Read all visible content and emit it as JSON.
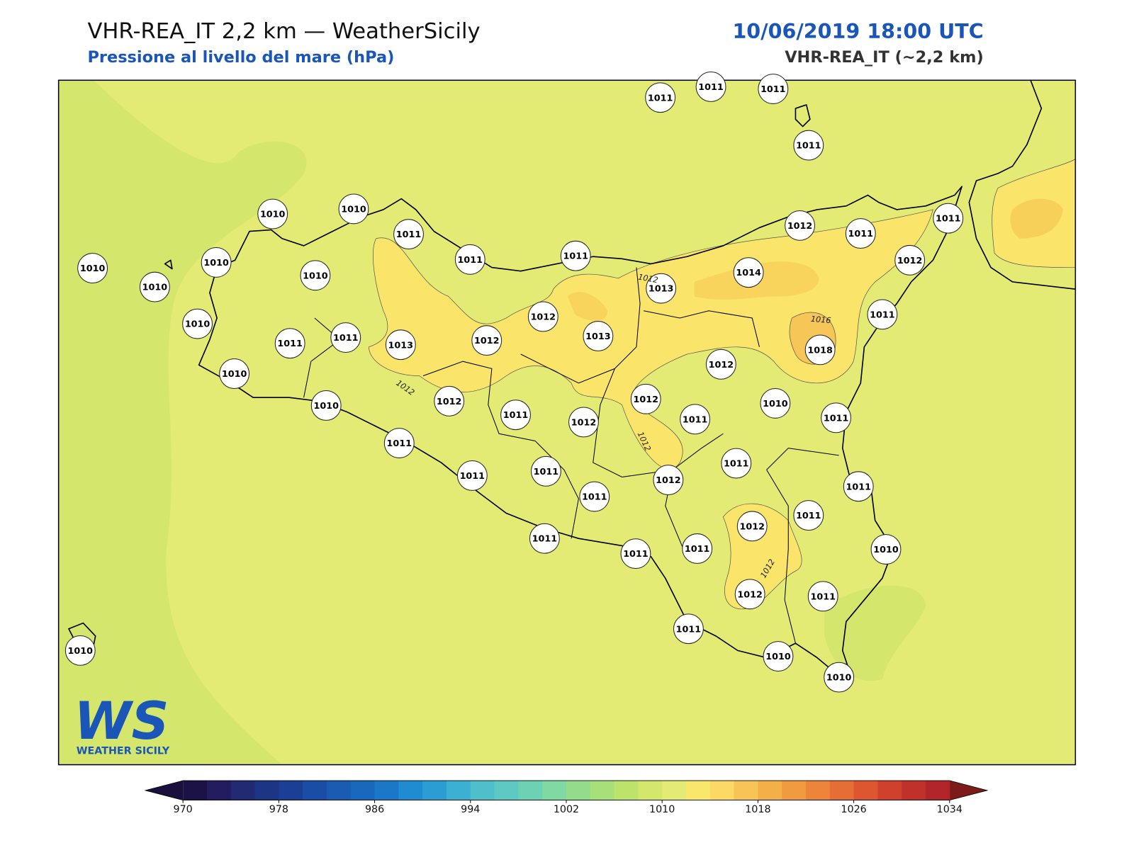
{
  "header": {
    "title": "VHR-REA_IT 2,2 km — WeatherSicily",
    "subtitle": "Pressione al livello del mare (hPa)",
    "datetime": "10/06/2019 18:00 UTC",
    "model": "VHR-REA_IT (~2,2 km)"
  },
  "map": {
    "stations": [
      1011,
      1011,
      1011,
      1011,
      1010,
      1010,
      1011,
      1010,
      1010,
      1010,
      1010,
      1011,
      1011,
      1012,
      1011,
      1011,
      1012,
      1014,
      1013,
      1011,
      1010,
      1011,
      1011,
      1013,
      1012,
      1012,
      1013,
      1018,
      1012,
      1010,
      1010,
      1012,
      1011,
      1012,
      1012,
      1011,
      1010,
      1011,
      1011,
      1011,
      1011,
      1011,
      1012,
      1011,
      1011,
      1012,
      1011,
      1011,
      1011,
      1011,
      1010,
      1012,
      1011,
      1011,
      1010,
      1010,
      1010
    ],
    "contour_labels": [
      1012,
      1012,
      1012,
      1016,
      1012
    ]
  },
  "colorbar": {
    "range": [
      970,
      1034
    ],
    "ticks": [
      970,
      978,
      986,
      994,
      1002,
      1010,
      1018,
      1026,
      1034
    ],
    "colors": [
      "#1d1246",
      "#231c5e",
      "#212a72",
      "#1d3585",
      "#1a3f94",
      "#1a4ea6",
      "#1a5cb4",
      "#1869be",
      "#1b78c9",
      "#1f8bd0",
      "#2b9dd2",
      "#3bb0d2",
      "#4fbfcc",
      "#5ec8c2",
      "#6dd1b4",
      "#80d8a2",
      "#94dc8c",
      "#a7e078",
      "#bde36a",
      "#d4e76c",
      "#e3eb74",
      "#f9e76b",
      "#fcd964",
      "#f8c455",
      "#f4af48",
      "#f09b3f",
      "#ec853a",
      "#e66d33",
      "#de562f",
      "#d0412d",
      "#c1312b",
      "#b22629"
    ],
    "extend_colors": [
      "#1a0f3d",
      "#7d1b1b"
    ]
  },
  "logo": {
    "mark": "WS",
    "name": "WEATHER SICILY"
  }
}
